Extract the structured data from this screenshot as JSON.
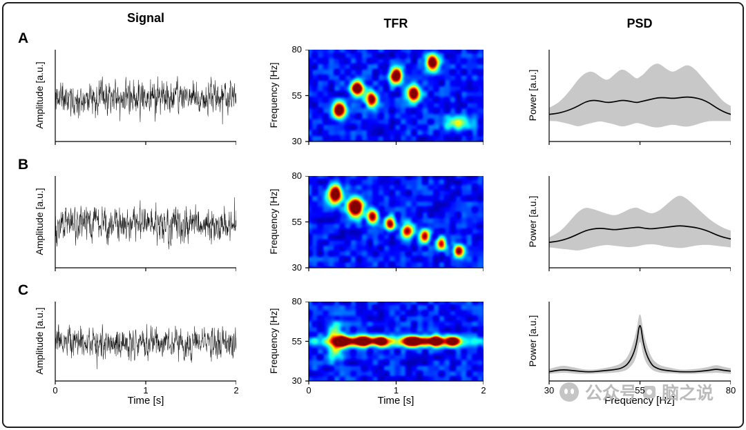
{
  "figure": {
    "columns": [
      "Signal",
      "TFR",
      "PSD"
    ],
    "rows": [
      "A",
      "B",
      "C"
    ],
    "axis_labels": {
      "time": "Time [s]",
      "amplitude": "Amplitude [a.u.]",
      "frequency_y": "Frequency [Hz]",
      "power": "Power [a.u.]",
      "frequency_x": "Frequency [Hz]"
    }
  },
  "watermark": {
    "label": "公众号",
    "name": "脑之说"
  },
  "chart_data": [
    {
      "row": "A",
      "panel": "signal",
      "type": "line",
      "xlabel": "Time [s]",
      "ylabel": "Amplitude [a.u.]",
      "xlim": [
        0,
        2
      ],
      "xticks": [
        0,
        1,
        2
      ],
      "show_x_tick_labels": false,
      "description": "broadband noise time series",
      "render_seed": 11,
      "n_points": 700
    },
    {
      "row": "A",
      "panel": "tfr",
      "type": "heatmap",
      "xlabel": "Time [s]",
      "ylabel": "Frequency [Hz]",
      "xlim": [
        0,
        2
      ],
      "ylim": [
        30,
        80
      ],
      "xticks": [
        0,
        1,
        2
      ],
      "yticks": [
        30,
        55,
        80
      ],
      "show_x_tick_labels": false,
      "colormap": "jet",
      "description": "transient oscillatory bursts at varying frequencies",
      "render_seed": 41,
      "bursts": [
        {
          "t": 0.35,
          "f": 47,
          "a": 1.15,
          "st": 0.05,
          "sf": 3.0
        },
        {
          "t": 0.55,
          "f": 59,
          "a": 1.15,
          "st": 0.05,
          "sf": 3.0
        },
        {
          "t": 0.72,
          "f": 53,
          "a": 1.0,
          "st": 0.045,
          "sf": 2.8
        },
        {
          "t": 1.0,
          "f": 66,
          "a": 1.15,
          "st": 0.05,
          "sf": 3.0
        },
        {
          "t": 1.2,
          "f": 56,
          "a": 1.1,
          "st": 0.055,
          "sf": 3.0
        },
        {
          "t": 1.42,
          "f": 73,
          "a": 1.15,
          "st": 0.05,
          "sf": 3.0
        },
        {
          "t": 1.7,
          "f": 40,
          "a": 0.42,
          "st": 0.12,
          "sf": 2.6
        }
      ]
    },
    {
      "row": "A",
      "panel": "psd",
      "type": "line-with-band",
      "xlabel": "Frequency [Hz]",
      "ylabel": "Power [a.u.]",
      "xlim": [
        30,
        80
      ],
      "xticks": [
        30,
        55,
        80
      ],
      "show_x_tick_labels": false,
      "band_color": "#c8c8c8",
      "line_color": "#000000",
      "x": [
        30,
        32,
        34,
        36,
        38,
        40,
        42,
        44,
        46,
        48,
        50,
        52,
        54,
        55,
        56,
        58,
        60,
        62,
        64,
        66,
        68,
        70,
        72,
        74,
        76,
        78,
        80
      ],
      "mean": [
        0.3,
        0.31,
        0.33,
        0.36,
        0.4,
        0.45,
        0.47,
        0.46,
        0.44,
        0.45,
        0.47,
        0.46,
        0.44,
        0.45,
        0.46,
        0.48,
        0.5,
        0.5,
        0.49,
        0.5,
        0.51,
        0.5,
        0.48,
        0.44,
        0.38,
        0.33,
        0.3
      ],
      "upper": [
        0.38,
        0.42,
        0.5,
        0.6,
        0.72,
        0.8,
        0.82,
        0.75,
        0.7,
        0.78,
        0.85,
        0.8,
        0.72,
        0.75,
        0.78,
        0.88,
        0.92,
        0.85,
        0.8,
        0.85,
        0.9,
        0.85,
        0.75,
        0.65,
        0.55,
        0.45,
        0.4
      ],
      "lower": [
        0.22,
        0.22,
        0.2,
        0.18,
        0.15,
        0.18,
        0.2,
        0.22,
        0.2,
        0.18,
        0.15,
        0.17,
        0.2,
        0.19,
        0.18,
        0.15,
        0.14,
        0.16,
        0.18,
        0.16,
        0.15,
        0.17,
        0.2,
        0.22,
        0.22,
        0.22,
        0.22
      ]
    },
    {
      "row": "B",
      "panel": "signal",
      "type": "line",
      "xlabel": "Time [s]",
      "ylabel": "Amplitude [a.u.]",
      "xlim": [
        0,
        2
      ],
      "xticks": [
        0,
        1,
        2
      ],
      "show_x_tick_labels": false,
      "description": "broadband noise time series",
      "render_seed": 22,
      "n_points": 700
    },
    {
      "row": "B",
      "panel": "tfr",
      "type": "heatmap",
      "xlabel": "Time [s]",
      "ylabel": "Frequency [Hz]",
      "xlim": [
        0,
        2
      ],
      "ylim": [
        30,
        80
      ],
      "xticks": [
        0,
        1,
        2
      ],
      "yticks": [
        30,
        55,
        80
      ],
      "show_x_tick_labels": false,
      "colormap": "jet",
      "description": "bursts descending in frequency over time",
      "render_seed": 42,
      "bursts": [
        {
          "t": 0.3,
          "f": 70,
          "a": 1.2,
          "st": 0.055,
          "sf": 3.4
        },
        {
          "t": 0.53,
          "f": 63,
          "a": 1.25,
          "st": 0.06,
          "sf": 3.6
        },
        {
          "t": 0.73,
          "f": 58,
          "a": 0.95,
          "st": 0.045,
          "sf": 2.8
        },
        {
          "t": 0.93,
          "f": 54,
          "a": 0.85,
          "st": 0.04,
          "sf": 2.6
        },
        {
          "t": 1.13,
          "f": 50,
          "a": 0.9,
          "st": 0.045,
          "sf": 2.7
        },
        {
          "t": 1.33,
          "f": 47,
          "a": 0.85,
          "st": 0.04,
          "sf": 2.5
        },
        {
          "t": 1.52,
          "f": 43,
          "a": 0.8,
          "st": 0.038,
          "sf": 2.4
        },
        {
          "t": 1.72,
          "f": 39,
          "a": 0.9,
          "st": 0.045,
          "sf": 2.5
        }
      ]
    },
    {
      "row": "B",
      "panel": "psd",
      "type": "line-with-band",
      "xlabel": "Frequency [Hz]",
      "ylabel": "Power [a.u.]",
      "xlim": [
        30,
        80
      ],
      "xticks": [
        30,
        55,
        80
      ],
      "show_x_tick_labels": false,
      "band_color": "#c8c8c8",
      "line_color": "#000000",
      "x": [
        30,
        32,
        34,
        36,
        38,
        40,
        42,
        44,
        46,
        48,
        50,
        52,
        54,
        55,
        56,
        58,
        60,
        62,
        64,
        66,
        68,
        70,
        72,
        74,
        76,
        78,
        80
      ],
      "mean": [
        0.28,
        0.29,
        0.31,
        0.34,
        0.38,
        0.42,
        0.44,
        0.45,
        0.44,
        0.43,
        0.44,
        0.45,
        0.46,
        0.46,
        0.45,
        0.44,
        0.45,
        0.46,
        0.47,
        0.48,
        0.47,
        0.46,
        0.44,
        0.41,
        0.37,
        0.34,
        0.32
      ],
      "upper": [
        0.34,
        0.38,
        0.45,
        0.55,
        0.65,
        0.7,
        0.68,
        0.65,
        0.62,
        0.6,
        0.63,
        0.68,
        0.7,
        0.68,
        0.66,
        0.62,
        0.65,
        0.72,
        0.8,
        0.85,
        0.8,
        0.72,
        0.64,
        0.56,
        0.5,
        0.45,
        0.42
      ],
      "lower": [
        0.22,
        0.21,
        0.2,
        0.19,
        0.18,
        0.2,
        0.22,
        0.24,
        0.25,
        0.24,
        0.23,
        0.22,
        0.23,
        0.24,
        0.25,
        0.26,
        0.25,
        0.23,
        0.22,
        0.21,
        0.22,
        0.24,
        0.25,
        0.25,
        0.24,
        0.23,
        0.22
      ]
    },
    {
      "row": "C",
      "panel": "signal",
      "type": "line",
      "xlabel": "Time [s]",
      "ylabel": "Amplitude [a.u.]",
      "xlim": [
        0,
        2
      ],
      "xticks": [
        0,
        1,
        2
      ],
      "show_x_tick_labels": true,
      "description": "broadband noise time series",
      "render_seed": 33,
      "n_points": 700
    },
    {
      "row": "C",
      "panel": "tfr",
      "type": "heatmap",
      "xlabel": "Time [s]",
      "ylabel": "Frequency [Hz]",
      "xlim": [
        0,
        2
      ],
      "ylim": [
        30,
        80
      ],
      "xticks": [
        0,
        1,
        2
      ],
      "yticks": [
        30,
        55,
        80
      ],
      "show_x_tick_labels": true,
      "colormap": "jet",
      "description": "sustained 55 Hz oscillation with burst hotspots",
      "render_seed": 43,
      "bursts": [
        {
          "t": 1.0,
          "f": 55,
          "a": 0.42,
          "st": 0.85,
          "sf": 2.1
        },
        {
          "t": 0.3,
          "f": 55,
          "a": 0.5,
          "st": 0.06,
          "sf": 8.0
        },
        {
          "t": 0.4,
          "f": 55,
          "a": 1.0,
          "st": 0.06,
          "sf": 2.3
        },
        {
          "t": 0.62,
          "f": 55,
          "a": 1.15,
          "st": 0.07,
          "sf": 2.3
        },
        {
          "t": 0.83,
          "f": 55,
          "a": 0.9,
          "st": 0.05,
          "sf": 2.2
        },
        {
          "t": 1.2,
          "f": 55,
          "a": 1.15,
          "st": 0.08,
          "sf": 2.3
        },
        {
          "t": 1.45,
          "f": 55,
          "a": 1.05,
          "st": 0.06,
          "sf": 2.3
        },
        {
          "t": 1.65,
          "f": 55,
          "a": 0.95,
          "st": 0.05,
          "sf": 2.2
        }
      ]
    },
    {
      "row": "C",
      "panel": "psd",
      "type": "line-with-band",
      "xlabel": "Frequency [Hz]",
      "ylabel": "Power [a.u.]",
      "xlim": [
        30,
        80
      ],
      "xticks": [
        30,
        55,
        80
      ],
      "show_x_tick_labels": true,
      "band_color": "#c8c8c8",
      "line_color": "#000000",
      "x": [
        30,
        32,
        34,
        36,
        38,
        40,
        42,
        44,
        46,
        48,
        50,
        52,
        54,
        55,
        56,
        58,
        60,
        62,
        64,
        66,
        68,
        70,
        72,
        74,
        76,
        78,
        80
      ],
      "mean": [
        0.1,
        0.12,
        0.13,
        0.12,
        0.11,
        0.1,
        0.1,
        0.11,
        0.12,
        0.13,
        0.15,
        0.22,
        0.45,
        0.85,
        0.45,
        0.2,
        0.14,
        0.12,
        0.11,
        0.1,
        0.1,
        0.1,
        0.11,
        0.12,
        0.14,
        0.12,
        0.11
      ],
      "upper": [
        0.14,
        0.17,
        0.19,
        0.17,
        0.15,
        0.13,
        0.13,
        0.14,
        0.16,
        0.18,
        0.22,
        0.33,
        0.65,
        1.0,
        0.62,
        0.3,
        0.2,
        0.17,
        0.15,
        0.13,
        0.13,
        0.14,
        0.15,
        0.17,
        0.2,
        0.17,
        0.15
      ],
      "lower": [
        0.07,
        0.08,
        0.09,
        0.08,
        0.07,
        0.07,
        0.07,
        0.08,
        0.08,
        0.09,
        0.1,
        0.14,
        0.28,
        0.6,
        0.28,
        0.13,
        0.09,
        0.08,
        0.08,
        0.07,
        0.07,
        0.07,
        0.08,
        0.08,
        0.09,
        0.08,
        0.07
      ]
    }
  ]
}
